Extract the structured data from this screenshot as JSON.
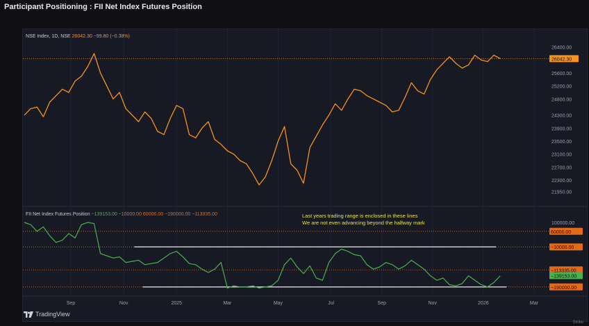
{
  "page": {
    "title": "Participant Positioning : FII Net Index Futures Position",
    "brand": "TradingView",
    "corner_mark": "Strike"
  },
  "colors": {
    "nse_line": "#f7931a",
    "fii_line": "#4caf50",
    "level_line": "#e06c1a",
    "range_line": "#d9d9d9",
    "annotation": "#e8e04a",
    "price_badge": "#f7931a",
    "fii_badge": "#4caf50"
  },
  "chart_data": [
    {
      "type": "line",
      "legend": {
        "symbol": "NSE Index, 1D, NSE",
        "last": "26042.30",
        "change": "−99.80 (−0.38%)"
      },
      "ylim": [
        21700,
        26650
      ],
      "x_range": [
        0,
        24.3
      ],
      "series": [
        {
          "x": [
            0,
            0.3,
            0.6,
            0.9,
            1.2,
            1.5,
            1.8,
            2.1,
            2.4,
            2.7,
            3.0,
            3.3,
            3.6,
            3.9,
            4.2,
            4.5,
            4.8,
            5.1,
            5.4,
            5.7,
            6.0,
            6.3,
            6.6,
            6.9,
            7.2,
            7.5,
            7.8,
            8.1,
            8.4,
            8.7,
            9.0,
            9.3,
            9.6,
            9.9,
            10.2,
            10.5,
            10.8,
            11.1,
            11.4,
            11.7,
            12.0,
            12.3,
            12.6,
            12.9,
            13.2,
            13.5,
            13.8,
            14.1,
            14.4,
            14.7,
            15.0,
            15.3,
            15.6,
            15.9,
            16.2,
            16.5,
            16.8,
            17.1,
            17.4,
            17.7,
            18.0,
            18.3,
            18.6,
            18.9,
            19.2,
            19.5,
            19.8,
            20.1,
            20.4,
            20.7,
            21.0,
            21.3,
            21.6,
            21.9,
            22.2,
            22.5
          ],
          "values": [
            24300,
            24500,
            24550,
            24250,
            24700,
            24900,
            25100,
            25000,
            25350,
            25500,
            25800,
            26200,
            25600,
            25200,
            24800,
            25000,
            24500,
            24300,
            24100,
            24400,
            24200,
            23800,
            23700,
            24200,
            24600,
            24500,
            23700,
            23600,
            23900,
            24100,
            23550,
            23400,
            23200,
            23100,
            22900,
            22800,
            22500,
            22150,
            22400,
            22900,
            23500,
            23950,
            22800,
            22600,
            22200,
            23300,
            23650,
            24000,
            24300,
            24650,
            24450,
            24800,
            25100,
            25050,
            24900,
            24800,
            24700,
            24600,
            24400,
            24450,
            24850,
            25300,
            25050,
            24950,
            25400,
            25700,
            25900,
            26100,
            25900,
            25750,
            25850,
            26150,
            26000,
            25950,
            26150,
            26042
          ]
        }
      ],
      "y_ticks": [
        "26400.00",
        "25600.00",
        "25200.00",
        "24800.00",
        "24300.00",
        "23900.00",
        "23500.00",
        "23100.00",
        "22700.00",
        "22300.00",
        "21950.00"
      ],
      "price_badge": "26042.30"
    },
    {
      "type": "line",
      "legend": {
        "symbol": "FII Net Index Futures Position",
        "values": [
          "−139153.00",
          "−10000.00",
          "60000.00",
          "−190000.00",
          "−113335.00"
        ]
      },
      "ylim": [
        -225000,
        150000
      ],
      "x_range": [
        0,
        24.3
      ],
      "series": [
        {
          "x": [
            0,
            0.3,
            0.6,
            0.9,
            1.2,
            1.5,
            1.8,
            2.1,
            2.4,
            2.7,
            3.0,
            3.3,
            3.6,
            3.9,
            4.2,
            4.5,
            4.8,
            5.1,
            5.4,
            5.7,
            6.0,
            6.3,
            6.6,
            6.9,
            7.2,
            7.5,
            7.8,
            8.1,
            8.4,
            8.7,
            9.0,
            9.3,
            9.6,
            9.9,
            10.2,
            10.5,
            10.8,
            11.1,
            11.4,
            11.7,
            12.0,
            12.3,
            12.6,
            12.9,
            13.2,
            13.5,
            13.8,
            14.1,
            14.4,
            14.7,
            15.0,
            15.3,
            15.6,
            15.9,
            16.2,
            16.5,
            16.8,
            17.1,
            17.4,
            17.7,
            18.0,
            18.3,
            18.6,
            18.9,
            19.2,
            19.5,
            19.8,
            20.1,
            20.4,
            20.7,
            21.0,
            21.3,
            21.6,
            21.9,
            22.2,
            22.5
          ],
          "values": [
            100000,
            90000,
            60000,
            80000,
            40000,
            10000,
            20000,
            50000,
            30000,
            90000,
            100000,
            95000,
            -40000,
            -50000,
            -60000,
            -55000,
            -80000,
            -75000,
            -70000,
            -90000,
            -85000,
            -80000,
            -60000,
            -40000,
            -30000,
            -55000,
            -85000,
            -90000,
            -110000,
            -125000,
            -110000,
            -80000,
            -195000,
            -185000,
            -190000,
            -190000,
            -185000,
            -195000,
            -190000,
            -185000,
            -160000,
            -90000,
            -60000,
            -100000,
            -130000,
            -95000,
            -150000,
            -160000,
            -80000,
            -40000,
            -20000,
            -30000,
            -45000,
            -50000,
            -90000,
            -110000,
            -100000,
            -80000,
            -90000,
            -110000,
            -95000,
            -70000,
            -90000,
            -110000,
            -140000,
            -160000,
            -150000,
            -180000,
            -185000,
            -175000,
            -140000,
            -160000,
            -180000,
            -190000,
            -170000,
            -140000
          ]
        }
      ],
      "level_badges": [
        {
          "label": "60000.00",
          "value": 60000,
          "color": "#e06c1a"
        },
        {
          "label": "−10000.00",
          "value": -10000,
          "color": "#e06c1a"
        },
        {
          "label": "−113335.00",
          "value": -113335,
          "color": "#e06c1a"
        },
        {
          "label": "−139153.00",
          "value": -139153,
          "color": "#4caf50"
        },
        {
          "label": "−190000.00",
          "value": -190000,
          "color": "#e06c1a"
        }
      ],
      "y_tick": "100000.00",
      "range_lines": [
        {
          "value": -10000,
          "x_start": 5.2,
          "x_end": 22.3
        },
        {
          "value": -190000,
          "x_start": 5.6,
          "x_end": 22.8
        }
      ],
      "annotation": [
        "Last years trading range is enclosed in these lines",
        "We are not even advancing beyond the halfway mark"
      ]
    }
  ],
  "x_axis": {
    "labels": [
      "Sep",
      "Nov",
      "2025",
      "Mar",
      "May",
      "Jul",
      "Sep",
      "Nov",
      "2026",
      "Mar"
    ],
    "positions": [
      2.2,
      4.7,
      7.2,
      9.6,
      12.0,
      14.5,
      16.9,
      19.3,
      21.7,
      24.1
    ]
  }
}
